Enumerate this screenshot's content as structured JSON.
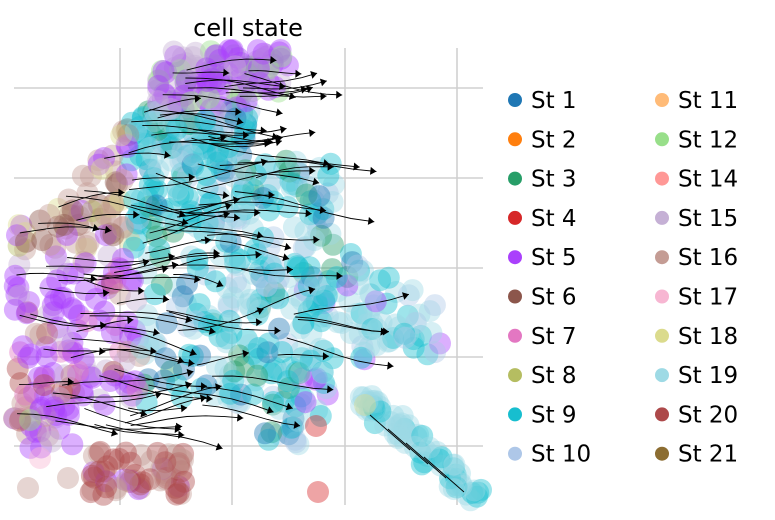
{
  "chart_data": {
    "type": "scatter",
    "subtype": "embedding-with-velocity-streamlines",
    "title": "cell state",
    "xlabel": "",
    "ylabel": "",
    "grid": true,
    "axes_visible": false,
    "legend_placement": "right",
    "legend_columns": 2,
    "streamlines": true,
    "streamline_color": "#000000",
    "series": [
      {
        "name": "St 1",
        "color": "#1f77b4"
      },
      {
        "name": "St 2",
        "color": "#ff7f0e"
      },
      {
        "name": "St 3",
        "color": "#279e68"
      },
      {
        "name": "St 4",
        "color": "#d62728"
      },
      {
        "name": "St 5",
        "color": "#aa40fc"
      },
      {
        "name": "St 6",
        "color": "#8c564b"
      },
      {
        "name": "St 7",
        "color": "#e377c2"
      },
      {
        "name": "St 8",
        "color": "#b5bd61"
      },
      {
        "name": "St 9",
        "color": "#17becf"
      },
      {
        "name": "St 10",
        "color": "#aec7e8"
      },
      {
        "name": "St 11",
        "color": "#ffbb78"
      },
      {
        "name": "St 12",
        "color": "#98df8a"
      },
      {
        "name": "St 14",
        "color": "#ff9896"
      },
      {
        "name": "St 15",
        "color": "#c5b0d5"
      },
      {
        "name": "St 16",
        "color": "#c49c94"
      },
      {
        "name": "St 17",
        "color": "#f7b6d2"
      },
      {
        "name": "St 18",
        "color": "#dbdb8d"
      },
      {
        "name": "St 19",
        "color": "#9edae5"
      },
      {
        "name": "St 20",
        "color": "#ad494a"
      },
      {
        "name": "St 21",
        "color": "#8c6d31"
      }
    ]
  }
}
